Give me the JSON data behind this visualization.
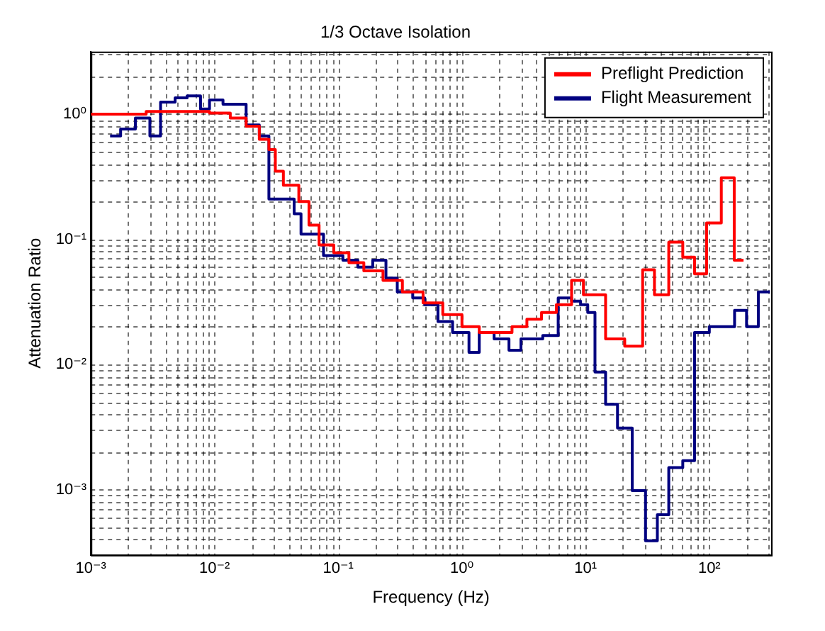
{
  "chart_data": {
    "type": "step",
    "title": "1/3 Octave Isolation",
    "xlabel": "Frequency (Hz)",
    "ylabel": "Attenuation Ratio",
    "log": "xy",
    "grid": true,
    "legend": "top right",
    "xlim": [
      0.001,
      316
    ],
    "ylim": [
      0.000316,
      3.16
    ],
    "xticks": [
      {
        "value": 0.001,
        "label": "10⁻³"
      },
      {
        "value": 0.002,
        "label": null
      },
      {
        "value": 0.003,
        "label": null
      },
      {
        "value": 0.004,
        "label": null
      },
      {
        "value": 0.005,
        "label": null
      },
      {
        "value": 0.006,
        "label": null
      },
      {
        "value": 0.007,
        "label": null
      },
      {
        "value": 0.008,
        "label": null
      },
      {
        "value": 0.009,
        "label": null
      },
      {
        "value": 0.01,
        "label": "10⁻²"
      },
      {
        "value": 0.02,
        "label": null
      },
      {
        "value": 0.03,
        "label": null
      },
      {
        "value": 0.04,
        "label": null
      },
      {
        "value": 0.05,
        "label": null
      },
      {
        "value": 0.06,
        "label": null
      },
      {
        "value": 0.07,
        "label": null
      },
      {
        "value": 0.08,
        "label": null
      },
      {
        "value": 0.09,
        "label": null
      },
      {
        "value": 0.1,
        "label": "10⁻¹"
      },
      {
        "value": 0.2,
        "label": null
      },
      {
        "value": 0.3,
        "label": null
      },
      {
        "value": 0.4,
        "label": null
      },
      {
        "value": 0.5,
        "label": null
      },
      {
        "value": 0.6,
        "label": null
      },
      {
        "value": 0.7,
        "label": null
      },
      {
        "value": 0.8,
        "label": null
      },
      {
        "value": 0.9,
        "label": null
      },
      {
        "value": 1,
        "label": "10⁰"
      },
      {
        "value": 2,
        "label": null
      },
      {
        "value": 3,
        "label": null
      },
      {
        "value": 4,
        "label": null
      },
      {
        "value": 5,
        "label": null
      },
      {
        "value": 6,
        "label": null
      },
      {
        "value": 7,
        "label": null
      },
      {
        "value": 8,
        "label": null
      },
      {
        "value": 9,
        "label": null
      },
      {
        "value": 10,
        "label": "10¹"
      },
      {
        "value": 20,
        "label": null
      },
      {
        "value": 30,
        "label": null
      },
      {
        "value": 40,
        "label": null
      },
      {
        "value": 50,
        "label": null
      },
      {
        "value": 60,
        "label": null
      },
      {
        "value": 70,
        "label": null
      },
      {
        "value": 80,
        "label": null
      },
      {
        "value": 90,
        "label": null
      },
      {
        "value": 100,
        "label": "10²"
      },
      {
        "value": 200,
        "label": null
      },
      {
        "value": 300,
        "label": null
      }
    ],
    "yticks": [
      {
        "value": 0.0004,
        "label": null
      },
      {
        "value": 0.0005,
        "label": null
      },
      {
        "value": 0.0006,
        "label": null
      },
      {
        "value": 0.0007,
        "label": null
      },
      {
        "value": 0.0008,
        "label": null
      },
      {
        "value": 0.0009,
        "label": null
      },
      {
        "value": 0.001,
        "label": "10⁻³"
      },
      {
        "value": 0.002,
        "label": null
      },
      {
        "value": 0.003,
        "label": null
      },
      {
        "value": 0.004,
        "label": null
      },
      {
        "value": 0.005,
        "label": null
      },
      {
        "value": 0.006,
        "label": null
      },
      {
        "value": 0.007,
        "label": null
      },
      {
        "value": 0.008,
        "label": null
      },
      {
        "value": 0.009,
        "label": null
      },
      {
        "value": 0.01,
        "label": "10⁻²"
      },
      {
        "value": 0.02,
        "label": null
      },
      {
        "value": 0.03,
        "label": null
      },
      {
        "value": 0.04,
        "label": null
      },
      {
        "value": 0.05,
        "label": null
      },
      {
        "value": 0.06,
        "label": null
      },
      {
        "value": 0.07,
        "label": null
      },
      {
        "value": 0.08,
        "label": null
      },
      {
        "value": 0.09,
        "label": null
      },
      {
        "value": 0.1,
        "label": "10⁻¹"
      },
      {
        "value": 0.2,
        "label": null
      },
      {
        "value": 0.3,
        "label": null
      },
      {
        "value": 0.4,
        "label": null
      },
      {
        "value": 0.5,
        "label": null
      },
      {
        "value": 0.6,
        "label": null
      },
      {
        "value": 0.7,
        "label": null
      },
      {
        "value": 0.8,
        "label": null
      },
      {
        "value": 0.9,
        "label": null
      },
      {
        "value": 1,
        "label": "10⁰"
      },
      {
        "value": 2,
        "label": null
      },
      {
        "value": 3,
        "label": null
      }
    ],
    "series": [
      {
        "name": "Preflight Prediction",
        "color": "#ff0000",
        "x": [
          0.001,
          0.0028,
          0.0091,
          0.0134,
          0.018,
          0.023,
          0.0275,
          0.031,
          0.036,
          0.048,
          0.058,
          0.07,
          0.092,
          0.122,
          0.161,
          0.23,
          0.33,
          0.485,
          0.7,
          1.0,
          1.38,
          1.93,
          2.54,
          3.35,
          4.4,
          5.8,
          7.7,
          9.6,
          11.9,
          14.5,
          20.7,
          28.9,
          36,
          47,
          61,
          76,
          95,
          125,
          159,
          189
        ],
        "values": [
          1.0,
          1.05,
          1.02,
          0.93,
          0.8,
          0.63,
          0.52,
          0.35,
          0.27,
          0.2,
          0.13,
          0.09,
          0.078,
          0.065,
          0.056,
          0.047,
          0.038,
          0.031,
          0.025,
          0.02,
          0.018,
          0.018,
          0.02,
          0.023,
          0.026,
          0.03,
          0.047,
          0.036,
          0.036,
          0.016,
          0.014,
          0.057,
          0.036,
          0.095,
          0.072,
          0.053,
          0.135,
          0.31,
          0.068,
          0.068
        ]
      },
      {
        "name": "Flight Measurement",
        "color": "#000080",
        "x": [
          0.00143,
          0.00174,
          0.00229,
          0.003,
          0.00366,
          0.0048,
          0.006,
          0.0077,
          0.0091,
          0.0117,
          0.0146,
          0.018,
          0.023,
          0.0275,
          0.044,
          0.05,
          0.076,
          0.109,
          0.144,
          0.19,
          0.243,
          0.3,
          0.4,
          0.5,
          0.64,
          0.84,
          1.14,
          1.38,
          1.82,
          2.4,
          3.0,
          3.95,
          4.5,
          6.0,
          7.7,
          9.1,
          10.4,
          11.9,
          14.5,
          18.1,
          23.8,
          30.5,
          38,
          47,
          61,
          76,
          100,
          125,
          160,
          200,
          249,
          309
        ],
        "values": [
          0.67,
          0.76,
          0.93,
          0.67,
          1.25,
          1.35,
          1.4,
          1.1,
          1.3,
          1.2,
          1.2,
          0.82,
          0.67,
          0.21,
          0.16,
          0.11,
          0.074,
          0.068,
          0.06,
          0.068,
          0.049,
          0.038,
          0.034,
          0.03,
          0.022,
          0.018,
          0.0125,
          0.018,
          0.016,
          0.013,
          0.016,
          0.016,
          0.017,
          0.034,
          0.032,
          0.03,
          0.026,
          0.0087,
          0.0048,
          0.0031,
          0.00098,
          0.00039,
          0.00063,
          0.0015,
          0.0017,
          0.018,
          0.02,
          0.02,
          0.027,
          0.02,
          0.038,
          0.038
        ]
      }
    ]
  }
}
